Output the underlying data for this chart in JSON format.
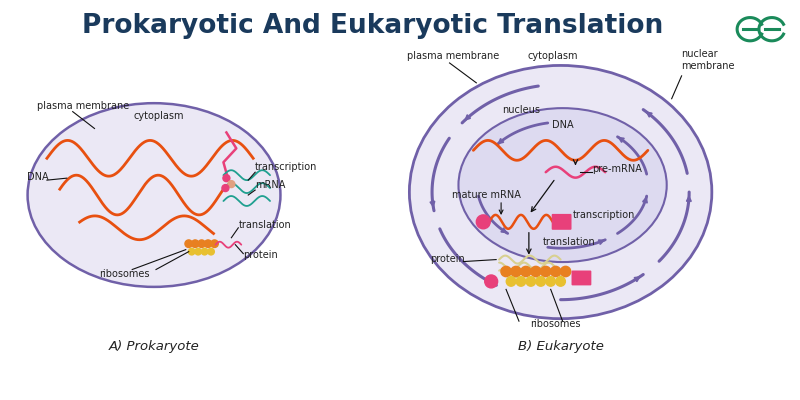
{
  "title": "Prokaryotic And Eukaryotic Translation",
  "title_fontsize": 19,
  "title_color": "#1a3a5c",
  "title_fontweight": "bold",
  "background_color": "#ffffff",
  "prokaryote_label": "A) Prokaryote",
  "eukaryote_label": "B) Eukaryote",
  "cell_fill_color": "#ebe8f5",
  "cell_edge_color": "#7060a8",
  "nucleus_fill_color": "#e0dcf0",
  "dna_color": "#e85010",
  "mrna_teal_color": "#20a090",
  "pink_color": "#e8407a",
  "cream_color": "#d8d090",
  "orange_color": "#e88020",
  "yellow_color": "#e8c030",
  "purple_color": "#7060a8",
  "label_fontsize": 7,
  "label_color": "#222222",
  "logo_color": "#1a8a5a",
  "arrow_color": "#111111"
}
